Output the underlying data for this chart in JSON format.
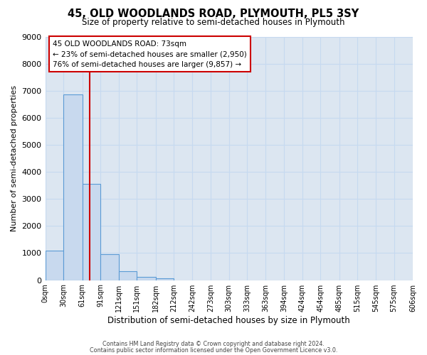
{
  "title": "45, OLD WOODLANDS ROAD, PLYMOUTH, PL5 3SY",
  "subtitle": "Size of property relative to semi-detached houses in Plymouth",
  "xlabel": "Distribution of semi-detached houses by size in Plymouth",
  "ylabel": "Number of semi-detached properties",
  "bin_edges": [
    0,
    30,
    61,
    91,
    121,
    151,
    182,
    212,
    242,
    273,
    303,
    333,
    363,
    394,
    424,
    454,
    485,
    515,
    545,
    575,
    606
  ],
  "bar_heights": [
    1100,
    6870,
    3560,
    960,
    340,
    130,
    80,
    0,
    0,
    0,
    0,
    0,
    0,
    0,
    0,
    0,
    0,
    0,
    0,
    0
  ],
  "bar_color": "#c8d9ee",
  "bar_edge_color": "#5b9bd5",
  "tick_labels": [
    "0sqm",
    "30sqm",
    "61sqm",
    "91sqm",
    "121sqm",
    "151sqm",
    "182sqm",
    "212sqm",
    "242sqm",
    "273sqm",
    "303sqm",
    "333sqm",
    "363sqm",
    "394sqm",
    "424sqm",
    "454sqm",
    "485sqm",
    "515sqm",
    "545sqm",
    "575sqm",
    "606sqm"
  ],
  "ylim": [
    0,
    9000
  ],
  "yticks": [
    0,
    1000,
    2000,
    3000,
    4000,
    5000,
    6000,
    7000,
    8000,
    9000
  ],
  "property_size": 73,
  "red_line_color": "#cc0000",
  "annotation_title": "45 OLD WOODLANDS ROAD: 73sqm",
  "annotation_line1": "← 23% of semi-detached houses are smaller (2,950)",
  "annotation_line2": "76% of semi-detached houses are larger (9,857) →",
  "annotation_box_facecolor": "#ffffff",
  "annotation_box_edgecolor": "#cc0000",
  "grid_color": "#c6d9f0",
  "background_color": "#dce6f1",
  "footer_line1": "Contains HM Land Registry data © Crown copyright and database right 2024.",
  "footer_line2": "Contains public sector information licensed under the Open Government Licence v3.0."
}
